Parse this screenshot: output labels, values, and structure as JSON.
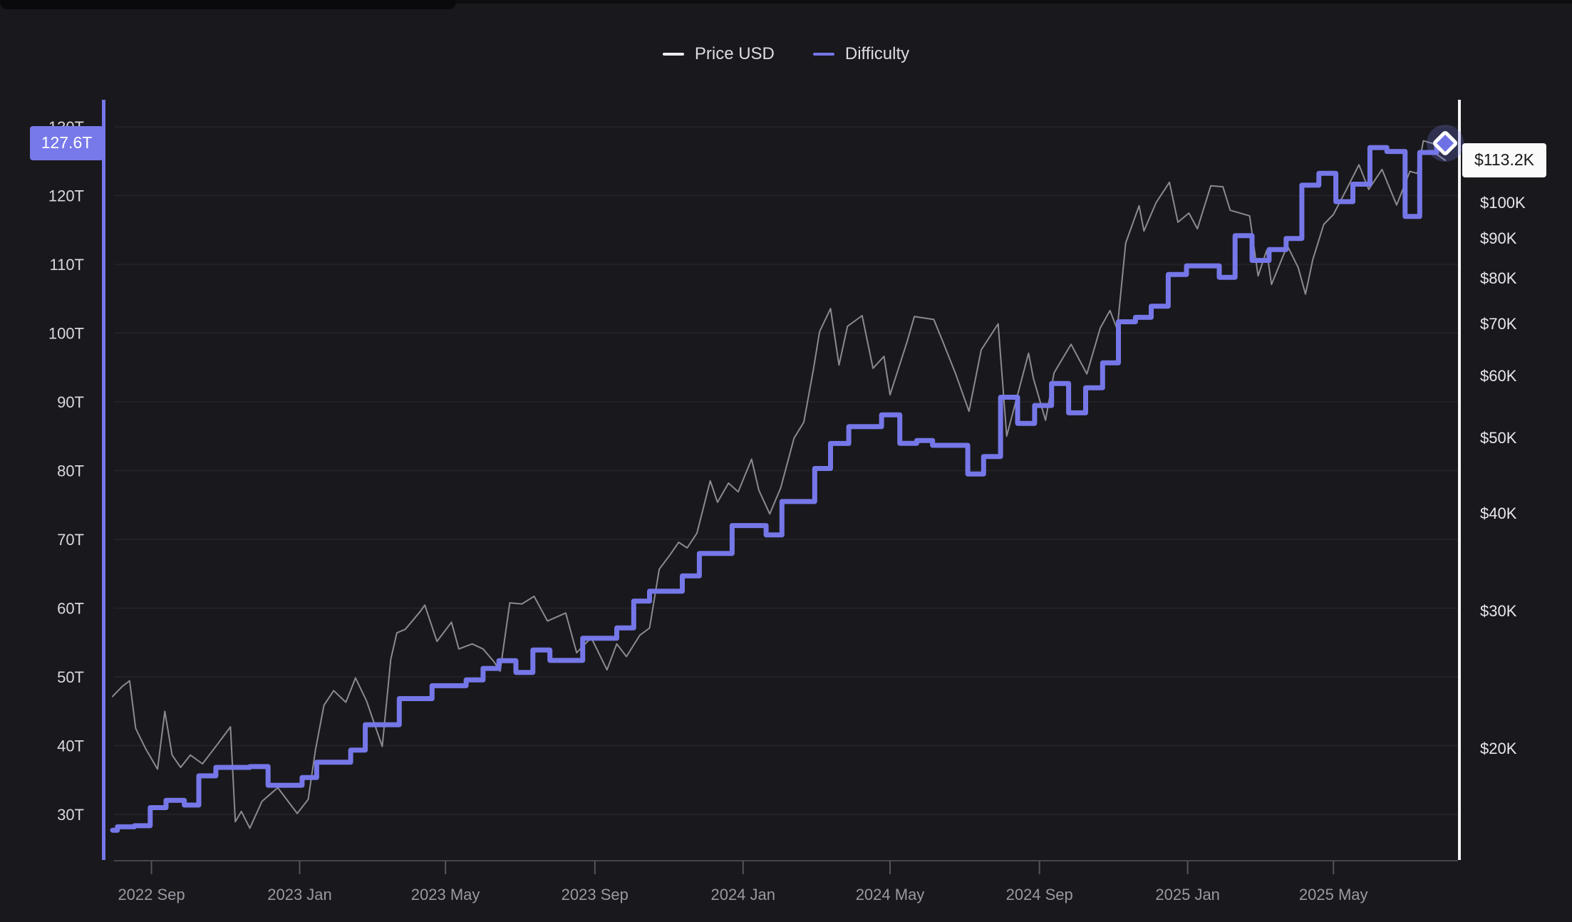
{
  "page": {
    "background_color": "#19181c",
    "accent_color": "#7577e8",
    "grid_color": "rgba(255,255,255,0.06)",
    "axis_baseline_color": "#55545c"
  },
  "legend": {
    "items": [
      {
        "label": "Price USD",
        "swatch_color": "#edecf2"
      },
      {
        "label": "Difficulty",
        "swatch_color": "#7577e8"
      }
    ]
  },
  "badges": {
    "difficulty_current": {
      "label": "127.6T",
      "bg": "#7779ea",
      "text_color": "#ffffff"
    },
    "price_current": {
      "label": "$113.2K",
      "bg": "#fafafa",
      "text_color": "#17171a"
    }
  },
  "chart_data": {
    "type": "line",
    "title": "",
    "legend_position": "top-center",
    "grid": "horizontal",
    "marker": {
      "shape": "diamond",
      "series": "Difficulty",
      "at": [
        "2025-08-01",
        127.62
      ],
      "fill": "#6e71e3",
      "stroke": "#ffffff",
      "halo": "rgba(119,122,235,0.25)"
    },
    "x_axis": {
      "scale": "time",
      "range": [
        "2022-07-31",
        "2025-08-08"
      ],
      "ticks": [
        {
          "date": "2022-09-01",
          "label": "2022 Sep"
        },
        {
          "date": "2023-01-01",
          "label": "2023 Jan"
        },
        {
          "date": "2023-05-01",
          "label": "2023 May"
        },
        {
          "date": "2023-09-01",
          "label": "2023 Sep"
        },
        {
          "date": "2024-01-01",
          "label": "2024 Jan"
        },
        {
          "date": "2024-05-01",
          "label": "2024 May"
        },
        {
          "date": "2024-09-01",
          "label": "2024 Sep"
        },
        {
          "date": "2025-01-01",
          "label": "2025 Jan"
        },
        {
          "date": "2025-05-01",
          "label": "2025 May"
        }
      ]
    },
    "y_axis_left": {
      "title": "Difficulty",
      "scale": "linear",
      "unit": "T",
      "axis_line_color": "#7577e8",
      "tick_values": [
        130,
        120,
        110,
        100,
        90,
        80,
        70,
        60,
        50,
        40,
        30
      ],
      "tick_labels": [
        "130T",
        "120T",
        "110T",
        "100T",
        "90T",
        "80T",
        "70T",
        "60T",
        "50T",
        "40T",
        "30T"
      ],
      "current_value_label": "127.6T"
    },
    "y_axis_right": {
      "title": "Price USD",
      "scale": "log",
      "unit": "$K",
      "axis_line_color": "#f4f3f6",
      "tick_values": [
        100,
        90,
        80,
        70,
        60,
        50,
        40,
        30,
        20
      ],
      "tick_labels": [
        "$100K",
        "$90K",
        "$80K",
        "$70K",
        "$60K",
        "$50K",
        "$40K",
        "$30K",
        "$20K"
      ],
      "current_value_label": "$113.2K"
    },
    "series": [
      {
        "name": "Price USD",
        "axis": "right",
        "style": "line",
        "color": "#8b8a92",
        "stroke_width": 2,
        "unit": "thousand USD",
        "points": [
          [
            "2022-07-31",
            23.3
          ],
          [
            "2022-08-08",
            24.0
          ],
          [
            "2022-08-14",
            24.4
          ],
          [
            "2022-08-19",
            21.2
          ],
          [
            "2022-08-27",
            20.0
          ],
          [
            "2022-09-06",
            18.8
          ],
          [
            "2022-09-12",
            22.3
          ],
          [
            "2022-09-18",
            19.6
          ],
          [
            "2022-09-25",
            18.9
          ],
          [
            "2022-10-03",
            19.6
          ],
          [
            "2022-10-13",
            19.1
          ],
          [
            "2022-10-25",
            20.2
          ],
          [
            "2022-11-05",
            21.3
          ],
          [
            "2022-11-09",
            16.1
          ],
          [
            "2022-11-14",
            16.6
          ],
          [
            "2022-11-21",
            15.8
          ],
          [
            "2022-12-01",
            17.1
          ],
          [
            "2022-12-14",
            17.8
          ],
          [
            "2022-12-30",
            16.5
          ],
          [
            "2023-01-08",
            17.2
          ],
          [
            "2023-01-14",
            19.9
          ],
          [
            "2023-01-21",
            22.7
          ],
          [
            "2023-01-29",
            23.7
          ],
          [
            "2023-02-08",
            22.9
          ],
          [
            "2023-02-16",
            24.6
          ],
          [
            "2023-02-25",
            23.0
          ],
          [
            "2023-03-10",
            20.1
          ],
          [
            "2023-03-17",
            26.0
          ],
          [
            "2023-03-22",
            28.1
          ],
          [
            "2023-03-29",
            28.4
          ],
          [
            "2023-04-10",
            29.9
          ],
          [
            "2023-04-14",
            30.5
          ],
          [
            "2023-04-24",
            27.4
          ],
          [
            "2023-05-06",
            29.0
          ],
          [
            "2023-05-12",
            26.8
          ],
          [
            "2023-05-23",
            27.2
          ],
          [
            "2023-06-01",
            26.8
          ],
          [
            "2023-06-10",
            25.8
          ],
          [
            "2023-06-15",
            25.1
          ],
          [
            "2023-06-23",
            30.7
          ],
          [
            "2023-07-03",
            30.6
          ],
          [
            "2023-07-13",
            31.3
          ],
          [
            "2023-07-24",
            29.1
          ],
          [
            "2023-08-08",
            29.8
          ],
          [
            "2023-08-17",
            26.5
          ],
          [
            "2023-08-29",
            27.7
          ],
          [
            "2023-09-11",
            25.2
          ],
          [
            "2023-09-19",
            27.2
          ],
          [
            "2023-09-27",
            26.2
          ],
          [
            "2023-10-08",
            27.9
          ],
          [
            "2023-10-16",
            28.5
          ],
          [
            "2023-10-24",
            33.9
          ],
          [
            "2023-11-02",
            35.4
          ],
          [
            "2023-11-09",
            36.7
          ],
          [
            "2023-11-16",
            36.1
          ],
          [
            "2023-11-24",
            37.7
          ],
          [
            "2023-12-05",
            44.0
          ],
          [
            "2023-12-11",
            41.3
          ],
          [
            "2023-12-20",
            43.7
          ],
          [
            "2023-12-28",
            42.6
          ],
          [
            "2024-01-08",
            46.9
          ],
          [
            "2024-01-14",
            42.8
          ],
          [
            "2024-01-23",
            39.9
          ],
          [
            "2024-02-01",
            43.1
          ],
          [
            "2024-02-12",
            49.9
          ],
          [
            "2024-02-20",
            52.3
          ],
          [
            "2024-02-28",
            61.2
          ],
          [
            "2024-03-04",
            68.3
          ],
          [
            "2024-03-13",
            73.1
          ],
          [
            "2024-03-20",
            61.9
          ],
          [
            "2024-03-27",
            69.4
          ],
          [
            "2024-04-08",
            71.6
          ],
          [
            "2024-04-17",
            61.3
          ],
          [
            "2024-04-26",
            63.5
          ],
          [
            "2024-05-01",
            56.7
          ],
          [
            "2024-05-15",
            66.3
          ],
          [
            "2024-05-21",
            71.4
          ],
          [
            "2024-06-06",
            70.8
          ],
          [
            "2024-06-14",
            66.0
          ],
          [
            "2024-06-24",
            60.3
          ],
          [
            "2024-07-05",
            54.0
          ],
          [
            "2024-07-15",
            64.7
          ],
          [
            "2024-07-29",
            69.9
          ],
          [
            "2024-08-05",
            50.2
          ],
          [
            "2024-08-23",
            64.1
          ],
          [
            "2024-08-27",
            59.5
          ],
          [
            "2024-09-06",
            52.6
          ],
          [
            "2024-09-13",
            60.5
          ],
          [
            "2024-09-27",
            65.8
          ],
          [
            "2024-10-10",
            60.3
          ],
          [
            "2024-10-21",
            69.0
          ],
          [
            "2024-10-29",
            72.7
          ],
          [
            "2024-11-04",
            68.8
          ],
          [
            "2024-11-11",
            88.7
          ],
          [
            "2024-11-22",
            99.0
          ],
          [
            "2024-11-26",
            91.9
          ],
          [
            "2024-12-06",
            99.9
          ],
          [
            "2024-12-17",
            106.1
          ],
          [
            "2024-12-24",
            94.3
          ],
          [
            "2025-01-02",
            96.9
          ],
          [
            "2025-01-09",
            92.5
          ],
          [
            "2025-01-20",
            105.0
          ],
          [
            "2025-01-30",
            104.7
          ],
          [
            "2025-02-05",
            97.7
          ],
          [
            "2025-02-21",
            96.1
          ],
          [
            "2025-02-28",
            80.5
          ],
          [
            "2025-03-07",
            86.8
          ],
          [
            "2025-03-11",
            78.5
          ],
          [
            "2025-03-24",
            88.0
          ],
          [
            "2025-04-02",
            82.5
          ],
          [
            "2025-04-08",
            76.3
          ],
          [
            "2025-04-14",
            84.5
          ],
          [
            "2025-04-23",
            93.7
          ],
          [
            "2025-05-01",
            96.5
          ],
          [
            "2025-05-12",
            104.1
          ],
          [
            "2025-05-22",
            111.7
          ],
          [
            "2025-05-30",
            103.9
          ],
          [
            "2025-06-10",
            110.2
          ],
          [
            "2025-06-22",
            99.2
          ],
          [
            "2025-07-03",
            109.6
          ],
          [
            "2025-07-09",
            108.9
          ],
          [
            "2025-07-14",
            119.9
          ],
          [
            "2025-07-23",
            118.8
          ],
          [
            "2025-07-25",
            115.2
          ],
          [
            "2025-08-01",
            113.2
          ]
        ]
      },
      {
        "name": "Difficulty",
        "axis": "left",
        "style": "step-after",
        "color": "#7577e8",
        "stroke_width": 7,
        "unit": "T",
        "points": [
          [
            "2022-07-31",
            27.7
          ],
          [
            "2022-08-04",
            28.2
          ],
          [
            "2022-08-18",
            28.35
          ],
          [
            "2022-08-31",
            30.98
          ],
          [
            "2022-09-13",
            32.05
          ],
          [
            "2022-09-28",
            31.36
          ],
          [
            "2022-10-10",
            35.61
          ],
          [
            "2022-10-24",
            36.84
          ],
          [
            "2022-11-21",
            36.95
          ],
          [
            "2022-12-06",
            34.24
          ],
          [
            "2023-01-03",
            35.36
          ],
          [
            "2023-01-15",
            37.59
          ],
          [
            "2023-02-12",
            39.35
          ],
          [
            "2023-02-24",
            43.05
          ],
          [
            "2023-03-24",
            46.84
          ],
          [
            "2023-04-20",
            48.71
          ],
          [
            "2023-05-18",
            49.55
          ],
          [
            "2023-06-01",
            51.23
          ],
          [
            "2023-06-14",
            52.35
          ],
          [
            "2023-06-28",
            50.65
          ],
          [
            "2023-07-12",
            53.91
          ],
          [
            "2023-07-26",
            52.39
          ],
          [
            "2023-08-22",
            55.62
          ],
          [
            "2023-09-19",
            57.12
          ],
          [
            "2023-10-03",
            61.03
          ],
          [
            "2023-10-16",
            62.46
          ],
          [
            "2023-11-12",
            64.68
          ],
          [
            "2023-11-26",
            67.96
          ],
          [
            "2023-12-23",
            72.01
          ],
          [
            "2024-01-20",
            70.64
          ],
          [
            "2024-02-02",
            75.5
          ],
          [
            "2024-02-29",
            80.31
          ],
          [
            "2024-03-13",
            83.95
          ],
          [
            "2024-03-28",
            86.39
          ],
          [
            "2024-04-24",
            88.1
          ],
          [
            "2024-05-09",
            83.97
          ],
          [
            "2024-05-23",
            84.38
          ],
          [
            "2024-06-05",
            83.68
          ],
          [
            "2024-07-04",
            79.5
          ],
          [
            "2024-07-17",
            82.05
          ],
          [
            "2024-07-31",
            90.67
          ],
          [
            "2024-08-14",
            86.87
          ],
          [
            "2024-08-28",
            89.47
          ],
          [
            "2024-09-11",
            92.67
          ],
          [
            "2024-09-25",
            88.4
          ],
          [
            "2024-10-09",
            92.05
          ],
          [
            "2024-10-23",
            95.67
          ],
          [
            "2024-11-05",
            101.65
          ],
          [
            "2024-11-19",
            102.29
          ],
          [
            "2024-12-02",
            103.92
          ],
          [
            "2024-12-16",
            108.52
          ],
          [
            "2024-12-31",
            109.78
          ],
          [
            "2025-01-27",
            108.11
          ],
          [
            "2025-02-09",
            114.17
          ],
          [
            "2025-02-23",
            110.57
          ],
          [
            "2025-03-09",
            112.15
          ],
          [
            "2025-03-23",
            113.76
          ],
          [
            "2025-04-05",
            121.51
          ],
          [
            "2025-04-19",
            123.23
          ],
          [
            "2025-05-03",
            119.12
          ],
          [
            "2025-05-17",
            121.66
          ],
          [
            "2025-05-31",
            126.98
          ],
          [
            "2025-06-14",
            126.41
          ],
          [
            "2025-06-29",
            116.96
          ],
          [
            "2025-07-11",
            126.27
          ],
          [
            "2025-07-25",
            127.62
          ],
          [
            "2025-08-01",
            127.62
          ]
        ]
      }
    ],
    "current_values": {
      "difficulty": "127.6T",
      "price": "$113.2K"
    }
  }
}
